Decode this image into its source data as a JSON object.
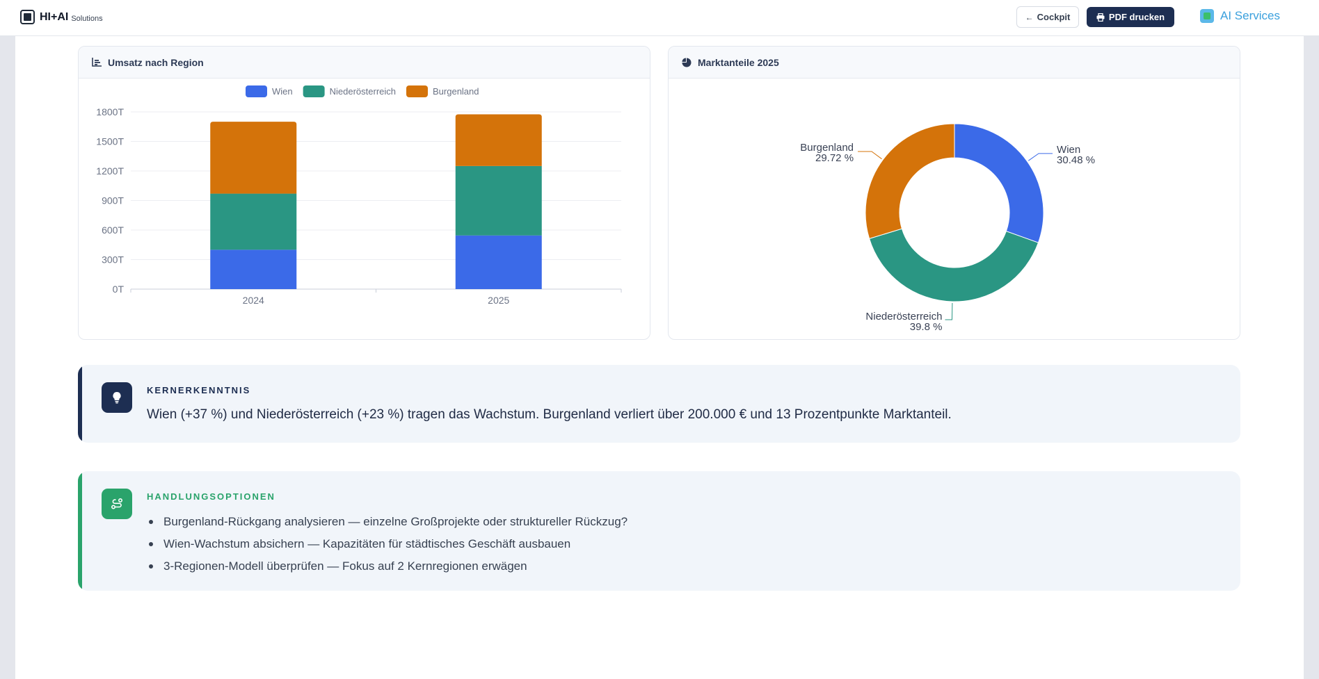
{
  "header": {
    "logo_name": "HI+AI",
    "logo_sub": "Solutions",
    "cockpit_label": "Cockpit",
    "pdf_label": "PDF drucken",
    "ai_services_label": "AI Services"
  },
  "revenue_card": {
    "title": "Umsatz nach Region",
    "icon": "bar-chart-icon"
  },
  "share_card": {
    "title": "Marktanteile 2025",
    "icon": "pie-chart-icon"
  },
  "chart_data": [
    {
      "type": "bar",
      "stacked": true,
      "title": "Umsatz nach Region",
      "categories": [
        "2024",
        "2025"
      ],
      "series": [
        {
          "name": "Wien",
          "color": "#3b6ae8",
          "values": [
            400,
            545
          ]
        },
        {
          "name": "Niederösterreich",
          "color": "#2a9683",
          "values": [
            570,
            705
          ]
        },
        {
          "name": "Burgenland",
          "color": "#d4730a",
          "values": [
            730,
            525
          ]
        }
      ],
      "ylim": [
        0,
        1800
      ],
      "yticks": [
        0,
        300,
        600,
        900,
        1200,
        1500,
        1800
      ],
      "ytick_suffix": "T",
      "legend": "top",
      "grid": true
    },
    {
      "type": "pie",
      "donut": true,
      "title": "Marktanteile 2025",
      "slices": [
        {
          "name": "Wien",
          "value": 30.48,
          "label": "30.48 %",
          "color": "#3b6ae8"
        },
        {
          "name": "Niederösterreich",
          "value": 39.8,
          "label": "39.8 %",
          "color": "#2a9683"
        },
        {
          "name": "Burgenland",
          "value": 29.72,
          "label": "29.72 %",
          "color": "#d4730a"
        }
      ]
    }
  ],
  "insight": {
    "label": "KERNERKENNTNIS",
    "text": "Wien (+37 %) und Niederösterreich (+23 %) tragen das Wachstum. Burgenland verliert über 200.000 € und 13 Prozentpunkte Marktanteil.",
    "icon": "lightbulb-icon",
    "accent": "#1d2e52"
  },
  "actions": {
    "label": "HANDLUNGSOPTIONEN",
    "icon": "route-icon",
    "accent": "#2aa36b",
    "items": [
      "Burgenland-Rückgang analysieren — einzelne Großprojekte oder struktureller Rückzug?",
      "Wien-Wachstum absichern — Kapazitäten für städtisches Geschäft ausbauen",
      "3-Regionen-Modell überprüfen — Fokus auf 2 Kernregionen erwägen"
    ]
  }
}
